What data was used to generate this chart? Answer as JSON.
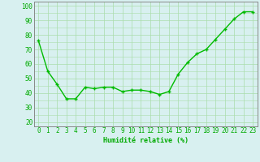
{
  "x": [
    0,
    1,
    2,
    3,
    4,
    5,
    6,
    7,
    8,
    9,
    10,
    11,
    12,
    13,
    14,
    15,
    16,
    17,
    18,
    19,
    20,
    21,
    22,
    23
  ],
  "y": [
    76,
    55,
    46,
    36,
    36,
    44,
    43,
    44,
    44,
    41,
    42,
    42,
    41,
    39,
    41,
    53,
    61,
    67,
    70,
    77,
    84,
    91,
    96,
    96
  ],
  "line_color": "#00bb00",
  "marker": "+",
  "marker_size": 3.5,
  "linewidth": 1.0,
  "xlabel": "Humidité relative (%)",
  "xlabel_color": "#00aa00",
  "xlabel_fontsize": 6,
  "ylabel_ticks": [
    20,
    30,
    40,
    50,
    60,
    70,
    80,
    90,
    100
  ],
  "xtick_labels": [
    "0",
    "1",
    "2",
    "3",
    "4",
    "5",
    "6",
    "7",
    "8",
    "9",
    "10",
    "11",
    "12",
    "13",
    "14",
    "15",
    "16",
    "17",
    "18",
    "19",
    "20",
    "21",
    "22",
    "23"
  ],
  "ylim": [
    17,
    103
  ],
  "xlim": [
    -0.5,
    23.5
  ],
  "background_color": "#d8f0f0",
  "grid_color": "#aaddaa",
  "tick_color": "#00aa00",
  "tick_fontsize": 5.5,
  "tick_fontcolor": "#00aa00"
}
